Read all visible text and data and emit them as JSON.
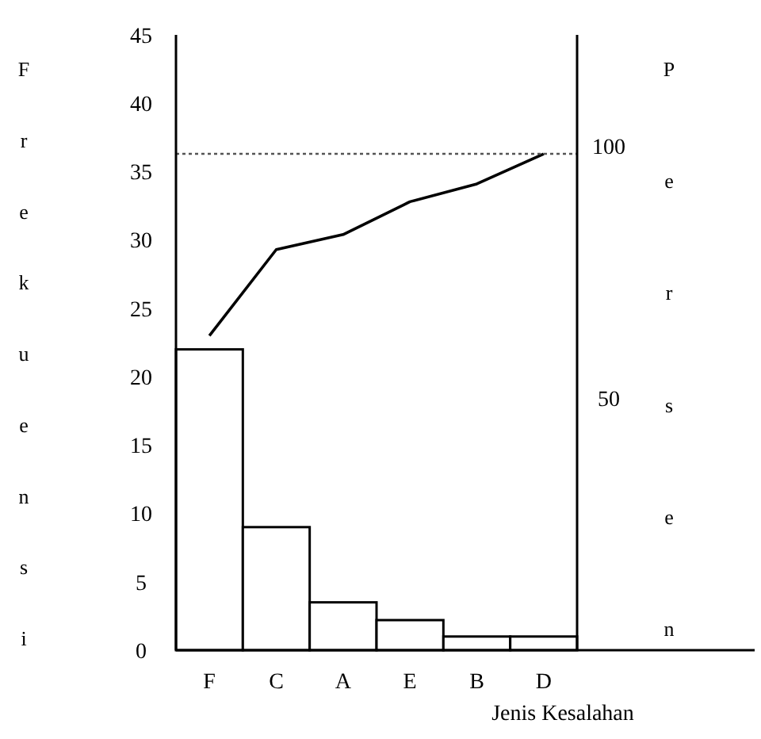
{
  "chart_data": {
    "type": "bar",
    "xlabel": "Jenis Kesalahan",
    "ylabel": "Frekuensi",
    "y2label": "Persen",
    "categories": [
      "F",
      "C",
      "A",
      "E",
      "B",
      "D"
    ],
    "series": [
      {
        "color": "#ffffff",
        "values": [
          22,
          9,
          3.5,
          2.2,
          1,
          1
        ]
      },
      {
        "type": "line",
        "color": "#000000",
        "values": [
          23,
          29.3,
          30.4,
          32.8,
          34.1,
          36.3
        ]
      }
    ],
    "ylim": [
      0,
      45
    ],
    "yticks": [
      0,
      5,
      10,
      15,
      20,
      25,
      30,
      35,
      40,
      45
    ],
    "y2lim": [
      0,
      122
    ],
    "y2ticks": [
      50,
      100
    ],
    "ref_lines": [
      {
        "axis": "y",
        "value": 36.3,
        "line_style": "dotted",
        "color": "#555555"
      }
    ],
    "grid": false,
    "marker": "none",
    "line_style": "solid"
  }
}
